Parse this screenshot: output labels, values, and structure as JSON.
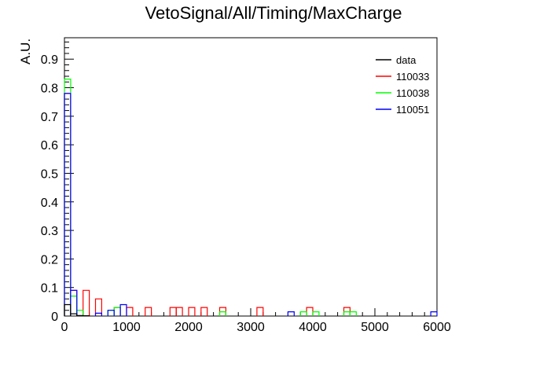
{
  "chart_data": {
    "type": "histogram",
    "title": "VetoSignal/All/Timing/MaxCharge",
    "xlabel": "",
    "ylabel": "A.U.",
    "xlim": [
      0,
      6000
    ],
    "ylim": [
      0,
      0.975
    ],
    "x_ticks": [
      0,
      1000,
      2000,
      3000,
      4000,
      5000,
      6000
    ],
    "y_ticks": [
      0,
      0.1,
      0.2,
      0.3,
      0.4,
      0.5,
      0.6,
      0.7,
      0.8,
      0.9
    ],
    "x_tick_labels": [
      "0",
      "1000",
      "2000",
      "3000",
      "4000",
      "5000",
      "6000"
    ],
    "y_tick_labels": [
      "0",
      "0.1",
      "0.2",
      "0.3",
      "0.4",
      "0.5",
      "0.6",
      "0.7",
      "0.8",
      "0.9"
    ],
    "bin_width": 100,
    "grid": false,
    "legend_position": "top-right",
    "series": [
      {
        "name": "data",
        "color": "#000000",
        "bins": [
          {
            "x": 0,
            "y": 0.04
          },
          {
            "x": 100,
            "y": 0.008
          },
          {
            "x": 200,
            "y": 0.002
          },
          {
            "x": 300,
            "y": 0.001
          }
        ]
      },
      {
        "name": "110033",
        "color": "#ff0000",
        "bins": [
          {
            "x": 0,
            "y": 0.78
          },
          {
            "x": 100,
            "y": 0.09
          },
          {
            "x": 300,
            "y": 0.09
          },
          {
            "x": 500,
            "y": 0.06
          },
          {
            "x": 800,
            "y": 0.03
          },
          {
            "x": 1000,
            "y": 0.03
          },
          {
            "x": 1300,
            "y": 0.03
          },
          {
            "x": 1700,
            "y": 0.03
          },
          {
            "x": 1800,
            "y": 0.03
          },
          {
            "x": 2000,
            "y": 0.03
          },
          {
            "x": 2200,
            "y": 0.03
          },
          {
            "x": 2500,
            "y": 0.03
          },
          {
            "x": 3100,
            "y": 0.03
          },
          {
            "x": 3900,
            "y": 0.03
          },
          {
            "x": 4500,
            "y": 0.03
          }
        ]
      },
      {
        "name": "110038",
        "color": "#00ff00",
        "bins": [
          {
            "x": 0,
            "y": 0.83
          },
          {
            "x": 100,
            "y": 0.07
          },
          {
            "x": 200,
            "y": 0.02
          },
          {
            "x": 700,
            "y": 0.02
          },
          {
            "x": 800,
            "y": 0.03
          },
          {
            "x": 2500,
            "y": 0.015
          },
          {
            "x": 3800,
            "y": 0.015
          },
          {
            "x": 4000,
            "y": 0.015
          },
          {
            "x": 4500,
            "y": 0.015
          },
          {
            "x": 4600,
            "y": 0.015
          }
        ]
      },
      {
        "name": "110051",
        "color": "#0000ff",
        "bins": [
          {
            "x": 0,
            "y": 0.78
          },
          {
            "x": 100,
            "y": 0.09
          },
          {
            "x": 500,
            "y": 0.01
          },
          {
            "x": 700,
            "y": 0.02
          },
          {
            "x": 900,
            "y": 0.04
          },
          {
            "x": 3600,
            "y": 0.015
          },
          {
            "x": 5900,
            "y": 0.015
          }
        ]
      }
    ]
  }
}
